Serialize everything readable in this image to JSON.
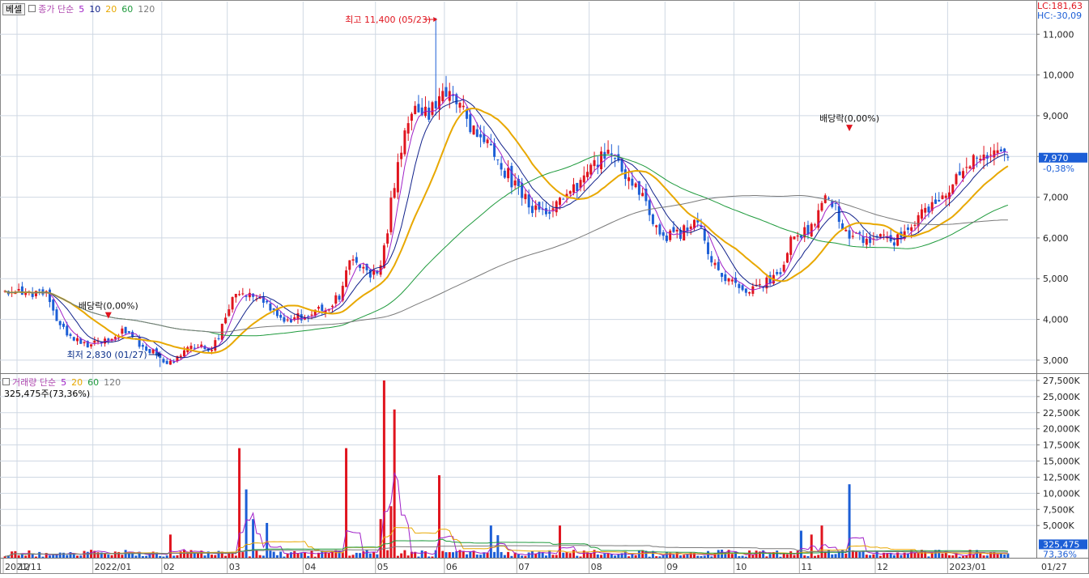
{
  "header": {
    "stock_button": "베셀",
    "price_legend": {
      "label": "종가 단순",
      "periods": [
        "5",
        "10",
        "20",
        "60",
        "120"
      ]
    },
    "volume_legend": {
      "label": "거래량 단순",
      "periods": [
        "5",
        "20",
        "60",
        "120"
      ]
    },
    "volume_readout": "325,475주(73,36%)"
  },
  "readouts": {
    "lc": "LC:181,63",
    "hc": "HC:-30,09"
  },
  "colors": {
    "up": "#e0141e",
    "down": "#1c5ed6",
    "ma5": "#a020c8",
    "ma10": "#10208a",
    "ma20": "#e8a800",
    "ma60": "#1e9a3c",
    "ma120": "#7a7a7a",
    "current_box": "#1c5ed6",
    "grid": "#cfd8e3"
  },
  "annotations": {
    "high": "최고 11,400 (05/23)",
    "low": "최저 2,830 (01/27)",
    "div1": "배당락(0,00%)",
    "div2": "배당락(0,00%)"
  },
  "current": {
    "price": "7,970",
    "change": "-0,38%",
    "volume": "325,475",
    "volume_pct": "73,36%"
  },
  "chart_data": [
    {
      "type": "candlestick",
      "title": "",
      "ylim": [
        2700,
        11800
      ],
      "y_ticks": [
        3000,
        4000,
        5000,
        6000,
        7000,
        8000,
        9000,
        10000,
        11000
      ],
      "y_tick_labels": [
        "3,000",
        "4,000",
        "5,000",
        "6,000",
        "7,000",
        "8,000",
        "9,000",
        "10,000",
        "11,000"
      ],
      "x_labels": [
        "2021/11",
        "12",
        "2022/01",
        "02",
        "03",
        "04",
        "05",
        "06",
        "07",
        "08",
        "09",
        "10",
        "11",
        "12",
        "2023/01",
        "01/27"
      ],
      "months": [
        {
          "label": "2021/11",
          "days": 4
        },
        {
          "label": "12",
          "days": 22
        },
        {
          "label": "2022/01",
          "days": 20
        },
        {
          "label": "02",
          "days": 19
        },
        {
          "label": "03",
          "days": 22
        },
        {
          "label": "04",
          "days": 21
        },
        {
          "label": "05",
          "days": 20
        },
        {
          "label": "06",
          "days": 21
        },
        {
          "label": "07",
          "days": 21
        },
        {
          "label": "08",
          "days": 22
        },
        {
          "label": "09",
          "days": 20
        },
        {
          "label": "10",
          "days": 19
        },
        {
          "label": "11",
          "days": 22
        },
        {
          "label": "12",
          "days": 21
        },
        {
          "label": "2023/01",
          "days": 18
        }
      ],
      "close_path": [
        4700,
        4650,
        4680,
        4650,
        4600,
        3800,
        3650,
        3420,
        3380,
        3500,
        3600,
        3700,
        3500,
        3300,
        3150,
        2950,
        3050,
        3300,
        3400,
        3150,
        3700,
        4500,
        4700,
        4600,
        4400,
        4150,
        4000,
        4050,
        4100,
        4200,
        4350,
        4600,
        5500,
        5200,
        5100,
        5400,
        7200,
        8600,
        9300,
        9000,
        9200,
        9600,
        9300,
        8800,
        8500,
        8200,
        7800,
        7400,
        7100,
        6700,
        6500,
        6800,
        7000,
        7200,
        7700,
        7900,
        8100,
        7900,
        7400,
        7000,
        6500,
        6100,
        6000,
        6200,
        6500,
        5800,
        5200,
        4900,
        4800,
        4700,
        4800,
        5000,
        5200,
        6000,
        6100,
        6400,
        7200,
        6700,
        6100,
        6050,
        6000,
        6100,
        5900,
        6000,
        6200,
        6600,
        6900,
        6900,
        7500,
        7800,
        7900,
        7950,
        8000,
        7970
      ],
      "series_ma": [
        {
          "name": "5",
          "period": 5
        },
        {
          "name": "10",
          "period": 10
        },
        {
          "name": "20",
          "period": 20
        },
        {
          "name": "60",
          "period": 60
        },
        {
          "name": "120",
          "period": 120
        }
      ],
      "annotations": [
        {
          "key": "high",
          "date_index": 125,
          "value": 11400
        },
        {
          "key": "low",
          "date_index": 45,
          "value": 2830
        },
        {
          "key": "div1",
          "date_index": 30,
          "value": 3700
        },
        {
          "key": "div2",
          "date_index": 245,
          "value": 8300
        }
      ],
      "current_price": 7970
    },
    {
      "type": "bar",
      "title": "",
      "ylim": [
        0,
        28500
      ],
      "y_unit": "K",
      "y_ticks": [
        5000,
        7500,
        10000,
        12500,
        15000,
        17500,
        20000,
        22500,
        25000,
        27500
      ],
      "y_tick_labels": [
        "5,000K",
        "7,500K",
        "10,000K",
        "12,500K",
        "15,000K",
        "17,500K",
        "20,000K",
        "22,500K",
        "25,000K",
        "27,500K"
      ],
      "spikes_k": [
        {
          "date_index": 68,
          "value": 17000
        },
        {
          "date_index": 70,
          "value": 10600
        },
        {
          "date_index": 72,
          "value": 6000
        },
        {
          "date_index": 76,
          "value": 5400
        },
        {
          "date_index": 48,
          "value": 3600
        },
        {
          "date_index": 99,
          "value": 17000
        },
        {
          "date_index": 110,
          "value": 27500
        },
        {
          "date_index": 113,
          "value": 23000
        },
        {
          "date_index": 112,
          "value": 8000
        },
        {
          "date_index": 109,
          "value": 6000
        },
        {
          "date_index": 126,
          "value": 12800
        },
        {
          "date_index": 141,
          "value": 5000
        },
        {
          "date_index": 161,
          "value": 5000
        },
        {
          "date_index": 143,
          "value": 3500
        },
        {
          "date_index": 231,
          "value": 4200
        },
        {
          "date_index": 237,
          "value": 5000
        },
        {
          "date_index": 245,
          "value": 11400
        },
        {
          "date_index": 234,
          "value": 3600
        }
      ],
      "current_volume_k": 325
    }
  ]
}
